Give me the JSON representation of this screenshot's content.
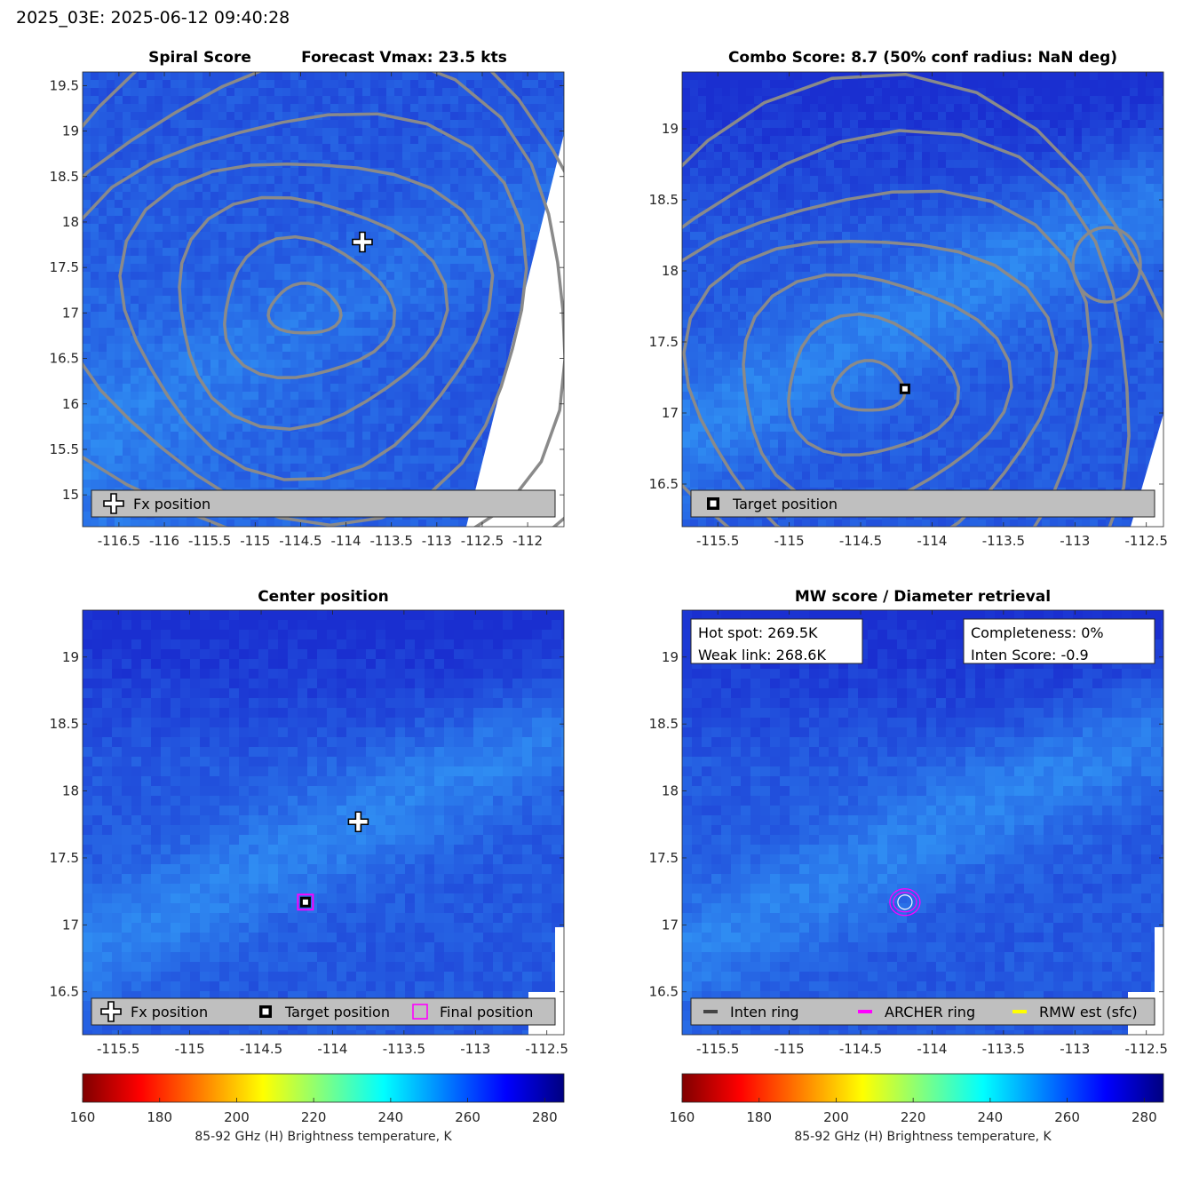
{
  "header": "2025_03E: 2025-06-12 09:40:28",
  "colors": {
    "background_ocean": "#1f52ec",
    "warm_dark": "#1a2fd0",
    "cool_light": "#2f8cf2",
    "contour": "#8a8a8a",
    "legend_bg": "#bfbfbf",
    "magenta": "#ff00ff",
    "yellow": "#ffff00",
    "ring": "#444444"
  },
  "chart_data": [
    {
      "id": "spiral",
      "type": "heatmap",
      "title_left": "Spiral Score",
      "title_right": "Forecast Vmax: 23.5 kts",
      "xlim": [
        -116.9,
        -111.6
      ],
      "ylim": [
        14.65,
        19.65
      ],
      "xticks": [
        "-116.5",
        "-116",
        "-115.5",
        "-115",
        "-114.5",
        "-114",
        "-113.5",
        "-113",
        "-112.5",
        "-112"
      ],
      "xtick_values": [
        -116.5,
        -116,
        -115.5,
        -115,
        -114.5,
        -114,
        -113.5,
        -113,
        -112.5,
        -112
      ],
      "yticks": [
        "19.5",
        "19",
        "18.5",
        "18",
        "17.5",
        "17",
        "16.5",
        "16",
        "15.5",
        "15"
      ],
      "ytick_values": [
        19.5,
        19,
        18.5,
        18,
        17.5,
        17,
        16.5,
        16,
        15.5,
        15
      ],
      "markers": [
        {
          "kind": "fx",
          "lon": -113.82,
          "lat": 17.78
        }
      ],
      "swath_edge": true,
      "contours": true,
      "legend": [
        {
          "icon": "fx-plus-icon",
          "label": "Fx position"
        }
      ]
    },
    {
      "id": "combo",
      "type": "heatmap",
      "title": "Combo Score: 8.7  (50% conf radius: NaN deg)",
      "xlim": [
        -115.75,
        -112.38
      ],
      "ylim": [
        16.2,
        19.4
      ],
      "xticks": [
        "-115.5",
        "-115",
        "-114.5",
        "-114",
        "-113.5",
        "-113",
        "-112.5"
      ],
      "xtick_values": [
        -115.5,
        -115,
        -114.5,
        -114,
        -113.5,
        -113,
        -112.5
      ],
      "yticks": [
        "19",
        "18.5",
        "18",
        "17.5",
        "17",
        "16.5"
      ],
      "ytick_values": [
        19,
        18.5,
        18,
        17.5,
        17,
        16.5
      ],
      "markers": [
        {
          "kind": "target",
          "lon": -114.19,
          "lat": 17.17
        }
      ],
      "contours": true,
      "legend": [
        {
          "icon": "target-square-icon",
          "label": "Target position"
        }
      ]
    },
    {
      "id": "center",
      "type": "heatmap",
      "title": "Center position",
      "xlim": [
        -115.75,
        -112.38
      ],
      "ylim": [
        16.18,
        19.35
      ],
      "xticks": [
        "-115.5",
        "-115",
        "-114.5",
        "-114",
        "-113.5",
        "-113",
        "-112.5"
      ],
      "xtick_values": [
        -115.5,
        -115,
        -114.5,
        -114,
        -113.5,
        -113,
        -112.5
      ],
      "yticks": [
        "19",
        "18.5",
        "18",
        "17.5",
        "17",
        "16.5"
      ],
      "ytick_values": [
        19,
        18.5,
        18,
        17.5,
        17,
        16.5
      ],
      "markers": [
        {
          "kind": "fx",
          "lon": -113.82,
          "lat": 17.77
        },
        {
          "kind": "target",
          "lon": -114.19,
          "lat": 17.17
        },
        {
          "kind": "final",
          "lon": -114.19,
          "lat": 17.17
        }
      ],
      "legend": [
        {
          "icon": "fx-plus-icon",
          "label": "Fx position"
        },
        {
          "icon": "target-square-icon",
          "label": "Target position"
        },
        {
          "icon": "final-square-icon",
          "label": "Final position"
        }
      ],
      "colorbar": {
        "min": 160,
        "max": 285,
        "ticks": [
          "160",
          "180",
          "200",
          "220",
          "240",
          "260",
          "280"
        ],
        "tick_values": [
          160,
          180,
          200,
          220,
          240,
          260,
          280
        ],
        "label": "85-92 GHz (H) Brightness temperature, K"
      }
    },
    {
      "id": "mw",
      "type": "heatmap",
      "title": "MW score / Diameter retrieval",
      "xlim": [
        -115.75,
        -112.38
      ],
      "ylim": [
        16.18,
        19.35
      ],
      "xticks": [
        "-115.5",
        "-115",
        "-114.5",
        "-114",
        "-113.5",
        "-113",
        "-112.5"
      ],
      "xtick_values": [
        -115.5,
        -115,
        -114.5,
        -114,
        -113.5,
        -113,
        -112.5
      ],
      "yticks": [
        "19",
        "18.5",
        "18",
        "17.5",
        "17",
        "16.5"
      ],
      "ytick_values": [
        19,
        18.5,
        18,
        17.5,
        17,
        16.5
      ],
      "markers": [
        {
          "kind": "rings",
          "lon": -114.19,
          "lat": 17.17
        }
      ],
      "infobox_left": [
        "Hot spot: 269.5K",
        "Weak link: 268.6K"
      ],
      "infobox_right": [
        "Completeness: 0%",
        "Inten Score: -0.9"
      ],
      "legend": [
        {
          "icon": "inten-ring-line-icon",
          "label": "Inten ring",
          "color": "#444444"
        },
        {
          "icon": "archer-ring-line-icon",
          "label": "ARCHER ring",
          "color": "#ff00ff"
        },
        {
          "icon": "rmw-line-icon",
          "label": "RMW est (sfc)",
          "color": "#ffff00"
        }
      ],
      "colorbar": {
        "min": 160,
        "max": 285,
        "ticks": [
          "160",
          "180",
          "200",
          "220",
          "240",
          "260",
          "280"
        ],
        "tick_values": [
          160,
          180,
          200,
          220,
          240,
          260,
          280
        ],
        "label": "85-92 GHz (H) Brightness temperature, K"
      }
    }
  ]
}
